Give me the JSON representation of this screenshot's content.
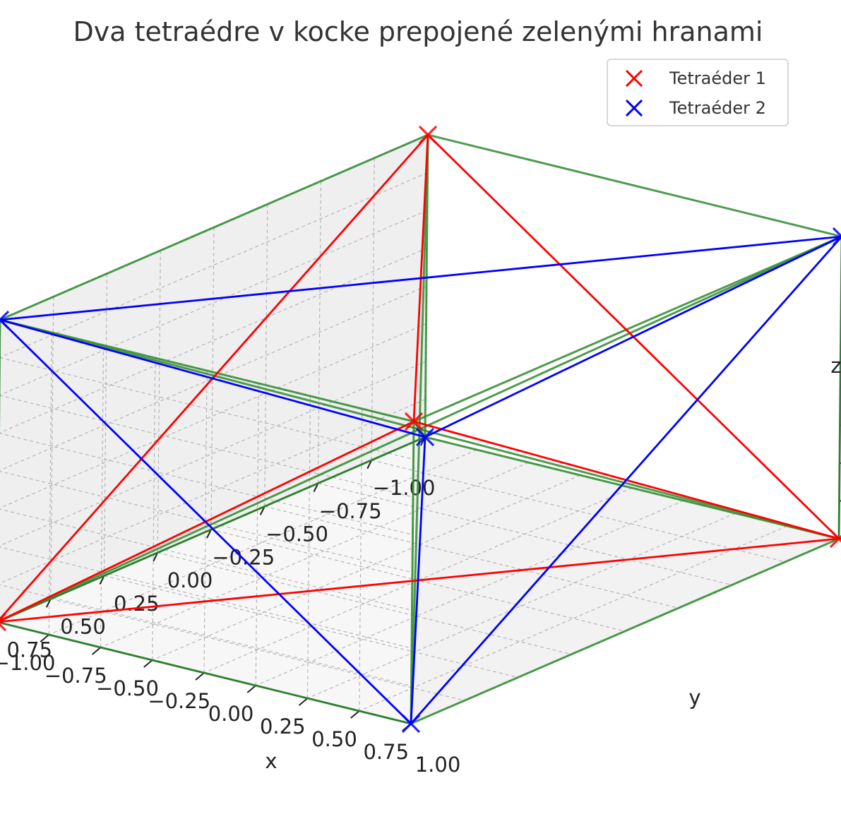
{
  "chart_data": {
    "type": "scatter3d",
    "title": "Dva tetraédre v kocke prepojené zelenými hranami",
    "xlabel": "x",
    "ylabel": "y",
    "zlabel": "z",
    "xlim": [
      -1,
      1
    ],
    "ylim": [
      -1,
      1
    ],
    "zlim": [
      -1,
      1
    ],
    "ticks": [
      "−1.00",
      "−0.75",
      "−0.50",
      "−0.25",
      "0.00",
      "0.25",
      "0.50",
      "0.75",
      "1.00"
    ],
    "tick_values": [
      -1,
      -0.75,
      -0.5,
      -0.25,
      0,
      0.25,
      0.5,
      0.75,
      1
    ],
    "grid": true,
    "legend_position": "top-right",
    "series": [
      {
        "name": "Tetraéder 1",
        "color": "#ff0000",
        "marker": "x",
        "points": [
          [
            1,
            1,
            1
          ],
          [
            1,
            -1,
            -1
          ],
          [
            -1,
            1,
            -1
          ],
          [
            -1,
            -1,
            1
          ]
        ]
      },
      {
        "name": "Tetraéder 2",
        "color": "#0000ff",
        "marker": "x",
        "points": [
          [
            -1,
            -1,
            -1
          ],
          [
            -1,
            1,
            1
          ],
          [
            1,
            -1,
            1
          ],
          [
            1,
            1,
            -1
          ]
        ]
      }
    ],
    "connecting_edges": {
      "color": "#2e8b2e",
      "description_from_title": "zelené hrany",
      "pairs": [
        [
          [
            1,
            1,
            1
          ],
          [
            -1,
            1,
            1
          ]
        ],
        [
          [
            1,
            1,
            1
          ],
          [
            1,
            -1,
            1
          ]
        ],
        [
          [
            1,
            1,
            1
          ],
          [
            1,
            1,
            -1
          ]
        ],
        [
          [
            1,
            -1,
            -1
          ],
          [
            -1,
            -1,
            -1
          ]
        ],
        [
          [
            1,
            -1,
            -1
          ],
          [
            1,
            -1,
            1
          ]
        ],
        [
          [
            1,
            -1,
            -1
          ],
          [
            1,
            1,
            -1
          ]
        ],
        [
          [
            -1,
            1,
            -1
          ],
          [
            -1,
            -1,
            -1
          ]
        ],
        [
          [
            -1,
            1,
            -1
          ],
          [
            -1,
            1,
            1
          ]
        ],
        [
          [
            -1,
            1,
            -1
          ],
          [
            1,
            1,
            -1
          ]
        ],
        [
          [
            -1,
            -1,
            1
          ],
          [
            -1,
            -1,
            -1
          ]
        ],
        [
          [
            -1,
            -1,
            1
          ],
          [
            -1,
            1,
            1
          ]
        ],
        [
          [
            -1,
            -1,
            1
          ],
          [
            1,
            -1,
            1
          ]
        ],
        [
          [
            1,
            1,
            1
          ],
          [
            -1,
            -1,
            -1
          ]
        ],
        [
          [
            -1,
            -1,
            1
          ],
          [
            1,
            1,
            -1
          ]
        ],
        [
          [
            -1,
            1,
            -1
          ],
          [
            1,
            -1,
            1
          ]
        ],
        [
          [
            1,
            -1,
            -1
          ],
          [
            -1,
            1,
            1
          ]
        ]
      ]
    }
  }
}
